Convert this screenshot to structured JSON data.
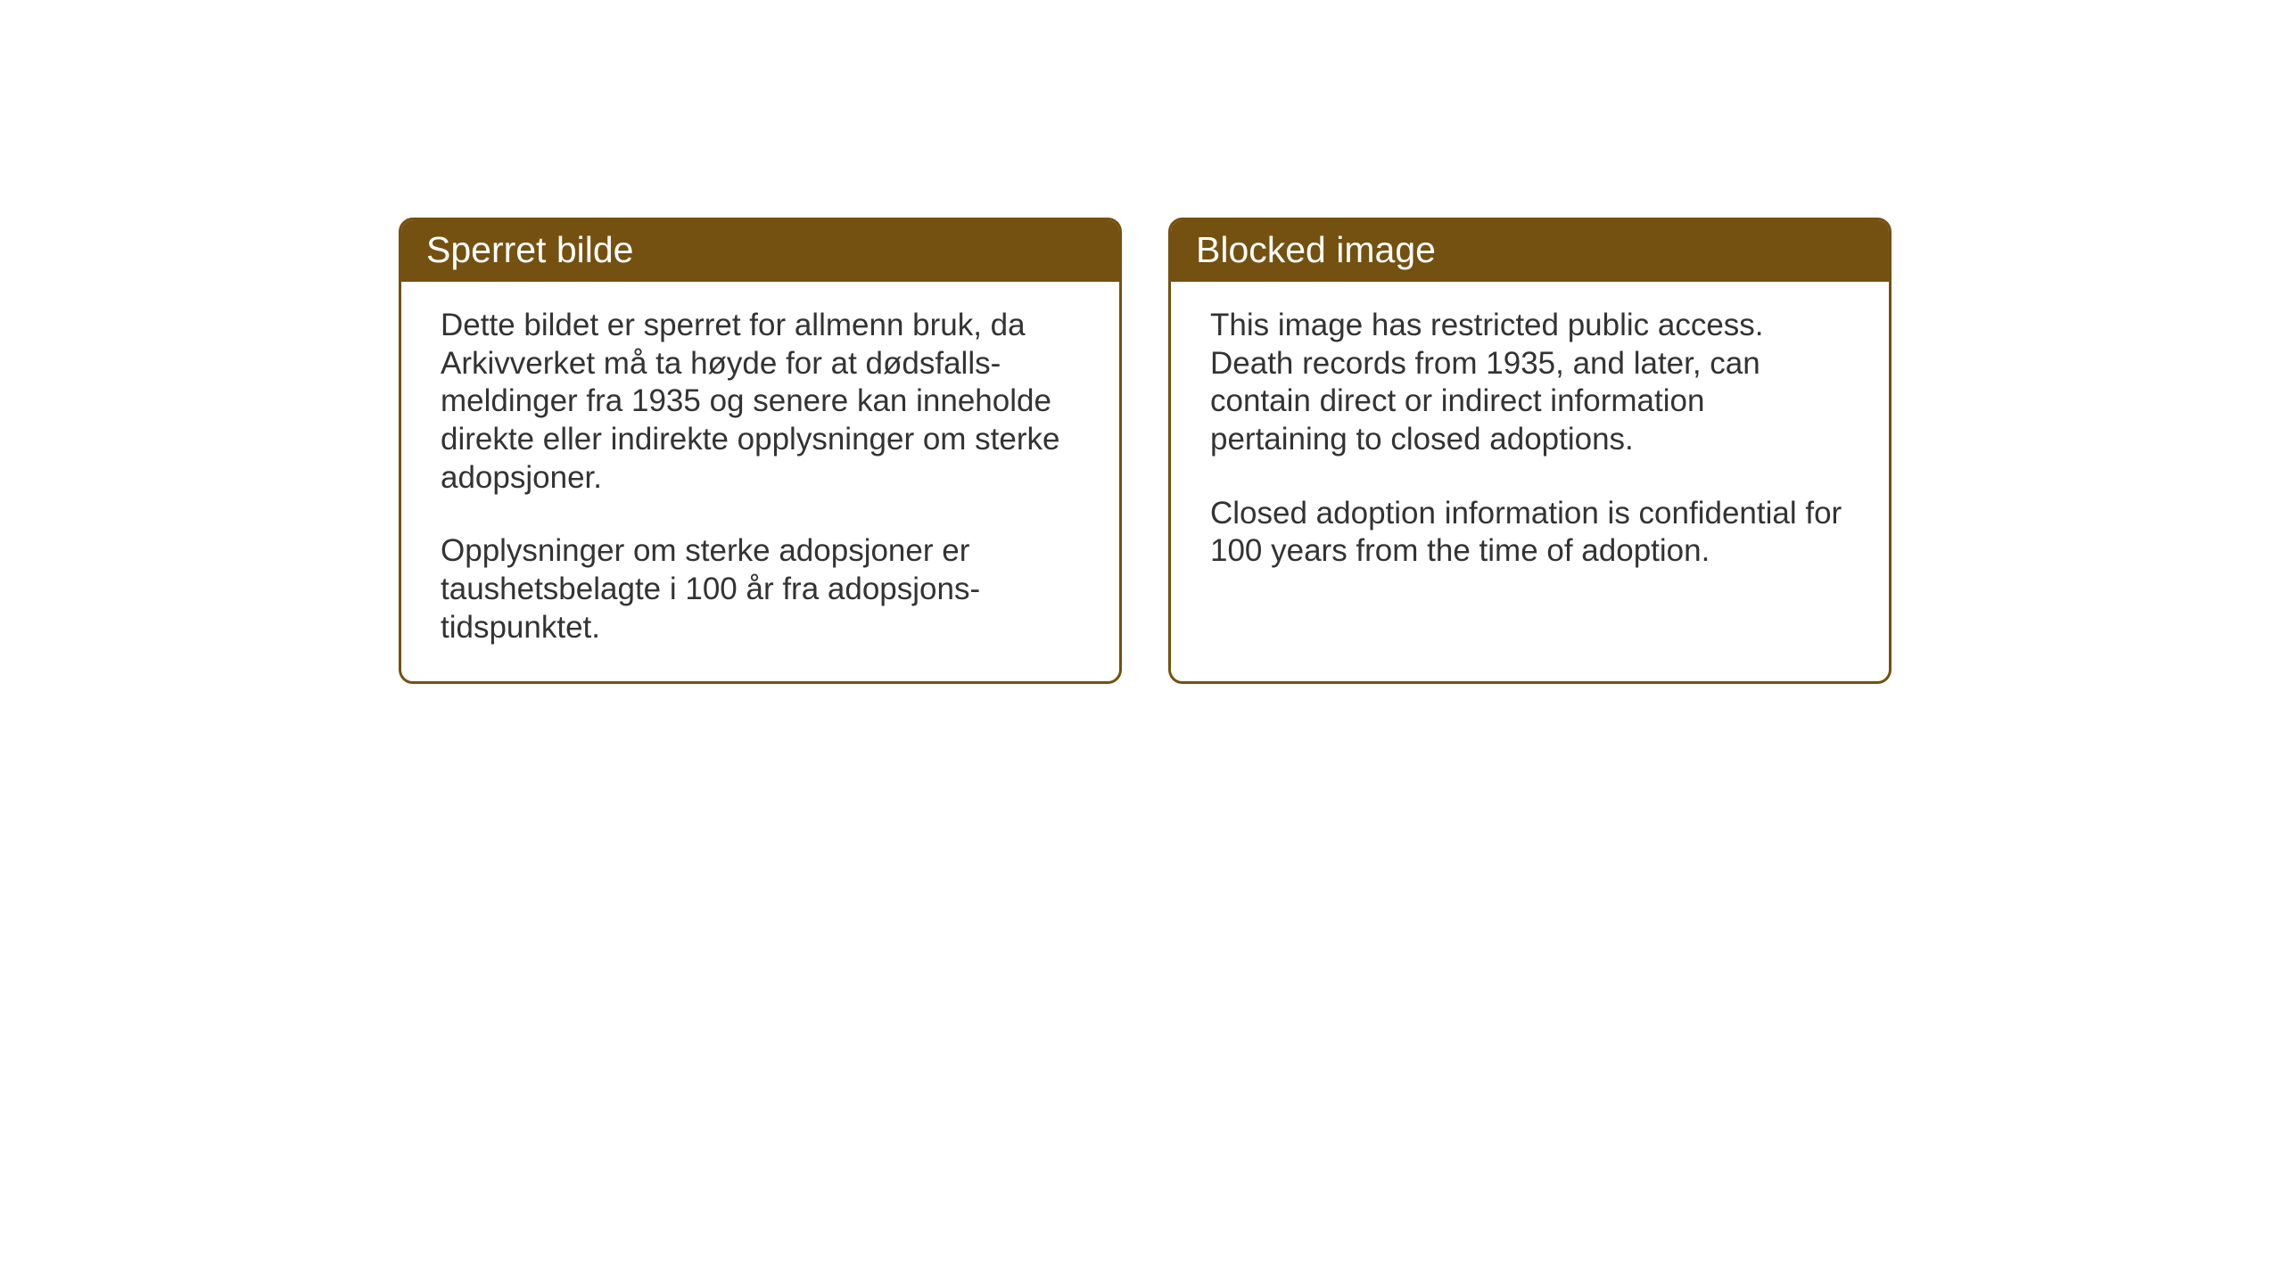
{
  "cards": {
    "norwegian": {
      "title": "Sperret bilde",
      "paragraph1": "Dette bildet er sperret for allmenn bruk, da Arkivverket må ta høyde for at dødsfalls-meldinger fra 1935 og senere kan inneholde direkte eller indirekte opplysninger om sterke adopsjoner.",
      "paragraph2": "Opplysninger om sterke adopsjoner er taushetsbelagte i 100 år fra adopsjons-tidspunktet."
    },
    "english": {
      "title": "Blocked image",
      "paragraph1": "This image has restricted public access. Death records from 1935, and later, can contain direct or indirect information pertaining to closed adoptions.",
      "paragraph2": "Closed adoption information is confidential for 100 years from the time of adoption."
    }
  },
  "styling": {
    "header_background": "#745110",
    "header_text_color": "#ffffff",
    "border_color": "#745110",
    "body_text_color": "#333333",
    "background_color": "#ffffff",
    "header_fontsize": 41,
    "body_fontsize": 35,
    "border_radius": 16,
    "border_width": 3
  }
}
